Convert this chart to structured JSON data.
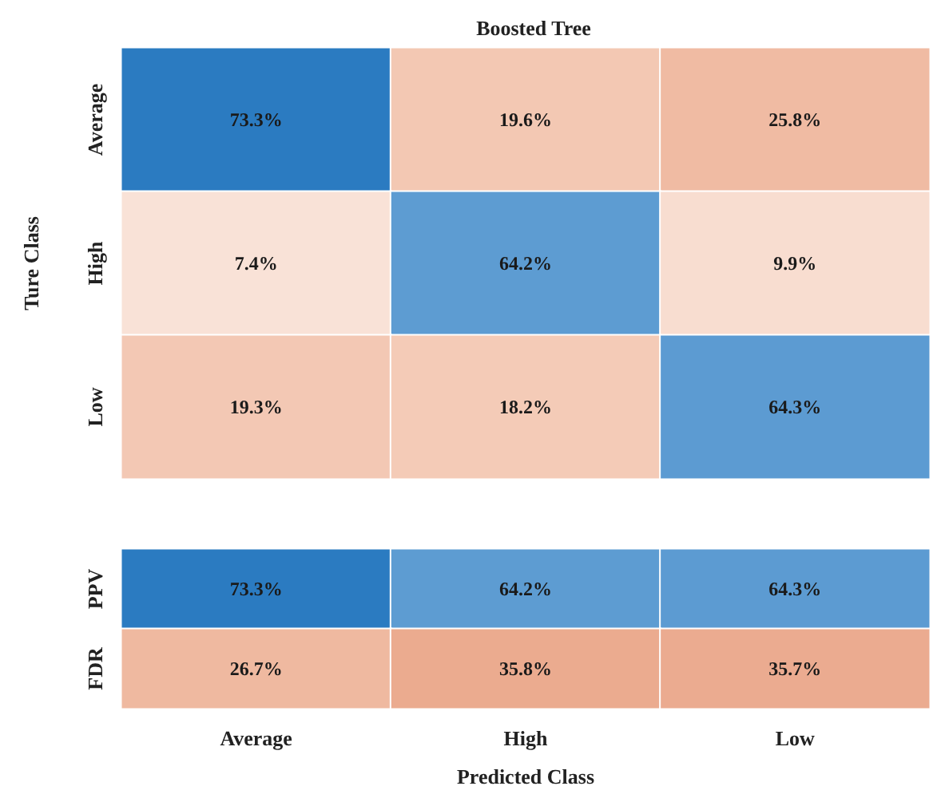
{
  "chart_data": [
    {
      "type": "heatmap",
      "title": "Boosted Tree",
      "ylabel": "Ture Class",
      "categories": [
        null,
        null,
        null
      ],
      "y_categories": [
        "Average",
        "High",
        "Low"
      ],
      "cells": [
        [
          73.3,
          19.6,
          25.8
        ],
        [
          7.4,
          64.2,
          9.9
        ],
        [
          19.3,
          18.2,
          64.3
        ]
      ],
      "cell_labels": [
        [
          "73.3%",
          "19.6%",
          "25.8%"
        ],
        [
          "7.4%",
          "64.2%",
          "9.9%"
        ],
        [
          "19.3%",
          "18.2%",
          "64.3%"
        ]
      ]
    },
    {
      "type": "heatmap",
      "xlabel": "Predicted Class",
      "categories": [
        "Average",
        "High",
        "Low"
      ],
      "y_categories": [
        "PPV",
        "FDR"
      ],
      "cells": [
        [
          73.3,
          64.2,
          64.3
        ],
        [
          26.7,
          35.8,
          35.7
        ]
      ],
      "cell_labels": [
        [
          "73.3%",
          "64.2%",
          "64.3%"
        ],
        [
          "26.7%",
          "35.8%",
          "35.7%"
        ]
      ]
    }
  ]
}
